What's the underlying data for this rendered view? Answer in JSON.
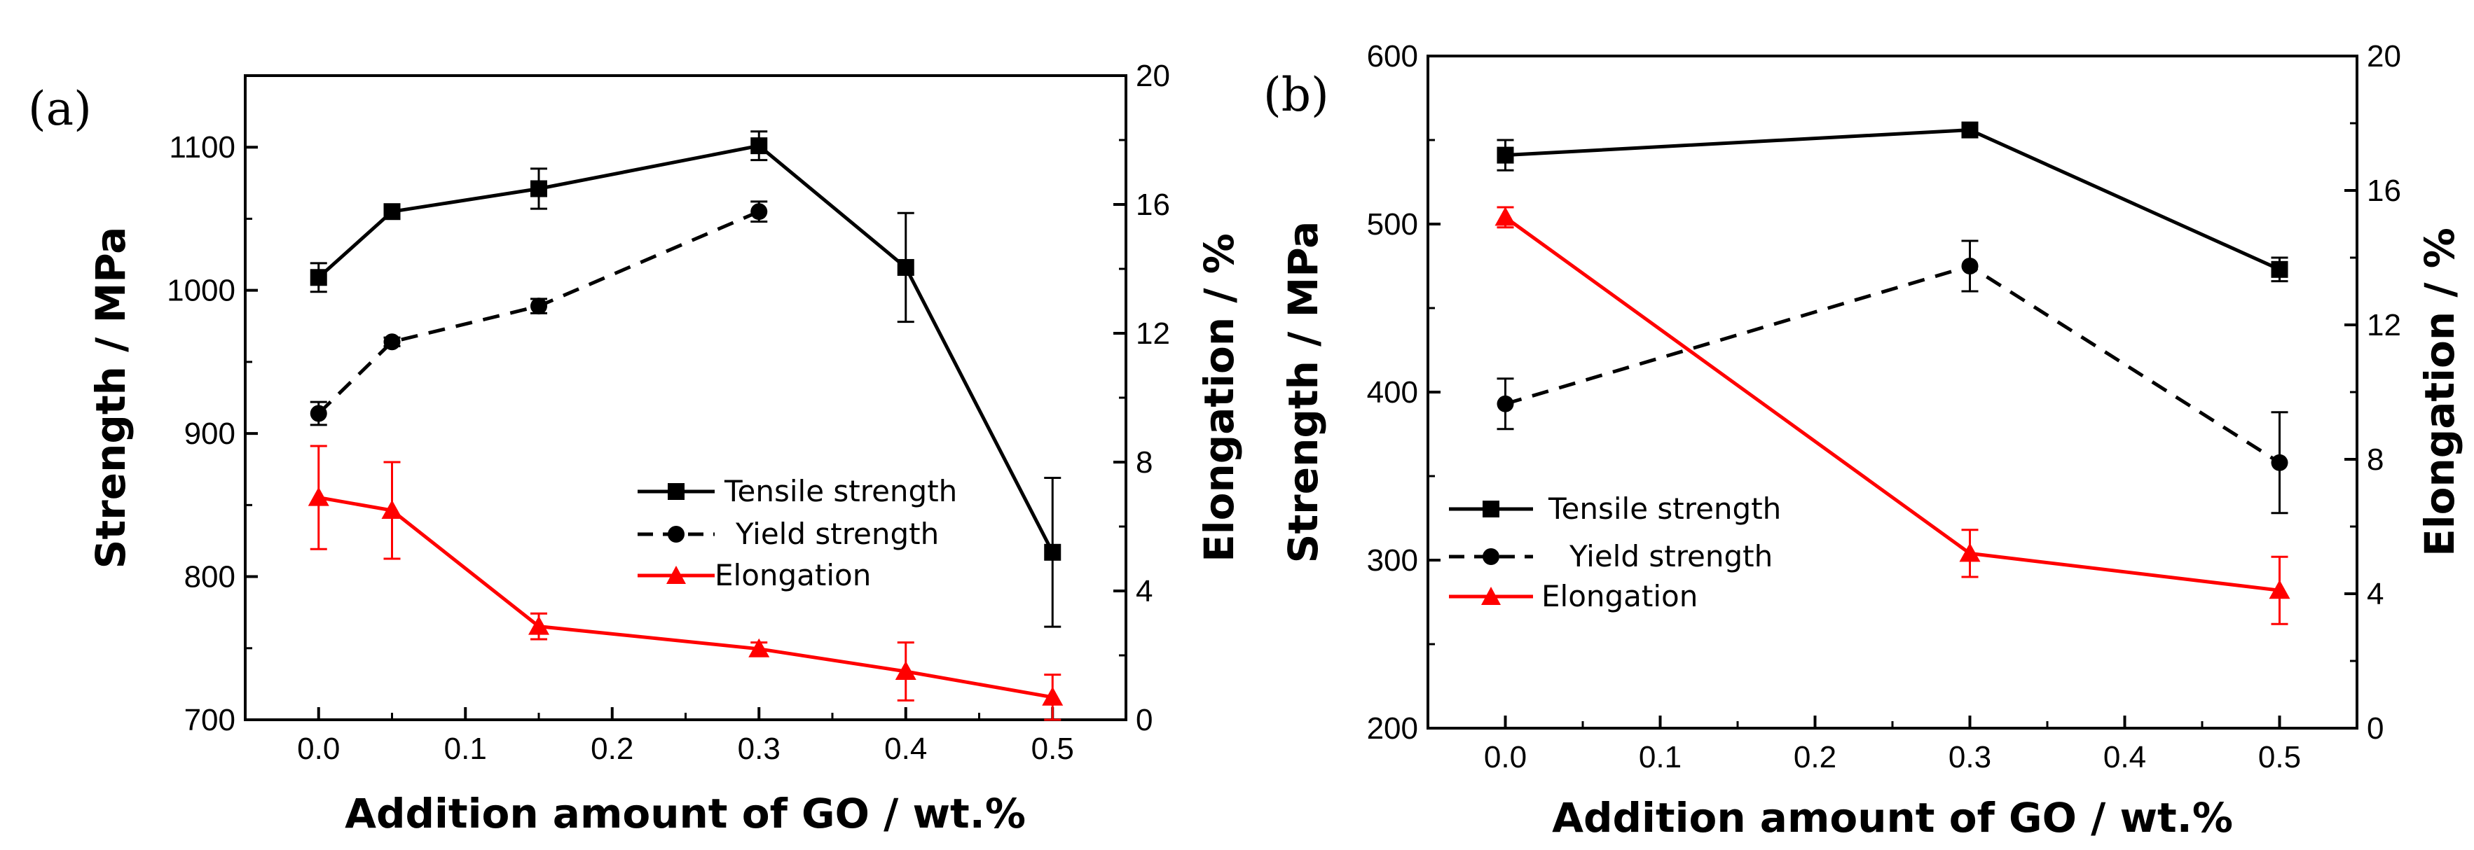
{
  "colors": {
    "tensile": "#000000",
    "yield": "#000000",
    "elongation": "#ff0000"
  },
  "chart_data": [
    {
      "panel": "(a)",
      "type": "line",
      "xlabel": "Addition amount of GO / wt.%",
      "ylabel": "Strength / MPa",
      "y2label": "Elongation / %",
      "xlim": [
        -0.05,
        0.55
      ],
      "ylim": [
        700,
        1150
      ],
      "y2lim": [
        0,
        20
      ],
      "xticks": [
        "0.0",
        "0.1",
        "0.2",
        "0.3",
        "0.4",
        "0.5"
      ],
      "yticks": [
        "700",
        "800",
        "900",
        "1000",
        "1100"
      ],
      "y2ticks": [
        "0",
        "4",
        "8",
        "12",
        "16",
        "20"
      ],
      "legend_position": "center-right",
      "series": [
        {
          "name": "Tensile strength",
          "axis": "left",
          "marker": "square",
          "dash": "solid",
          "color": "#000000",
          "x": [
            0.0,
            0.05,
            0.15,
            0.3,
            0.4,
            0.5
          ],
          "y": [
            1009,
            1055,
            1071,
            1101,
            1016,
            817
          ],
          "err": [
            10,
            4,
            14,
            10,
            38,
            52
          ]
        },
        {
          "name": "Yield strength",
          "axis": "left",
          "marker": "circle",
          "dash": "dashed",
          "color": "#000000",
          "x": [
            0.0,
            0.05,
            0.15,
            0.3
          ],
          "y": [
            914,
            964,
            989,
            1055
          ],
          "err": [
            8,
            3,
            5,
            7
          ]
        },
        {
          "name": "Elongation",
          "axis": "right",
          "marker": "triangle",
          "dash": "solid",
          "color": "#ff0000",
          "x": [
            0.0,
            0.05,
            0.15,
            0.3,
            0.4,
            0.5
          ],
          "y": [
            6.9,
            6.5,
            2.9,
            2.2,
            1.5,
            0.7
          ],
          "err": [
            1.6,
            1.5,
            0.4,
            0.2,
            0.9,
            0.7
          ]
        }
      ]
    },
    {
      "panel": "(b)",
      "type": "line",
      "xlabel": "Addition amount of GO / wt.%",
      "ylabel": "Strength / MPa",
      "y2label": "Elongation / %",
      "xlim": [
        -0.05,
        0.55
      ],
      "ylim": [
        200,
        600
      ],
      "y2lim": [
        0,
        20
      ],
      "xticks": [
        "0.0",
        "0.1",
        "0.2",
        "0.3",
        "0.4",
        "0.5"
      ],
      "yticks": [
        "200",
        "300",
        "400",
        "500",
        "600"
      ],
      "y2ticks": [
        "0",
        "4",
        "8",
        "12",
        "16",
        "20"
      ],
      "legend_position": "lower-left",
      "series": [
        {
          "name": "Tensile strength",
          "axis": "left",
          "marker": "square",
          "dash": "solid",
          "color": "#000000",
          "x": [
            0.0,
            0.3,
            0.5
          ],
          "y": [
            541,
            556,
            473
          ],
          "err": [
            9,
            2,
            7
          ]
        },
        {
          "name": "Yield strength",
          "axis": "left",
          "marker": "circle",
          "dash": "dashed",
          "color": "#000000",
          "x": [
            0.0,
            0.3,
            0.5
          ],
          "y": [
            393,
            475,
            358
          ],
          "err": [
            15,
            15,
            30
          ]
        },
        {
          "name": "Elongation",
          "axis": "right",
          "marker": "triangle",
          "dash": "solid",
          "color": "#ff0000",
          "x": [
            0.0,
            0.3,
            0.5
          ],
          "y": [
            15.2,
            5.2,
            4.1
          ],
          "err": [
            0.3,
            0.7,
            1.0
          ]
        }
      ]
    }
  ]
}
